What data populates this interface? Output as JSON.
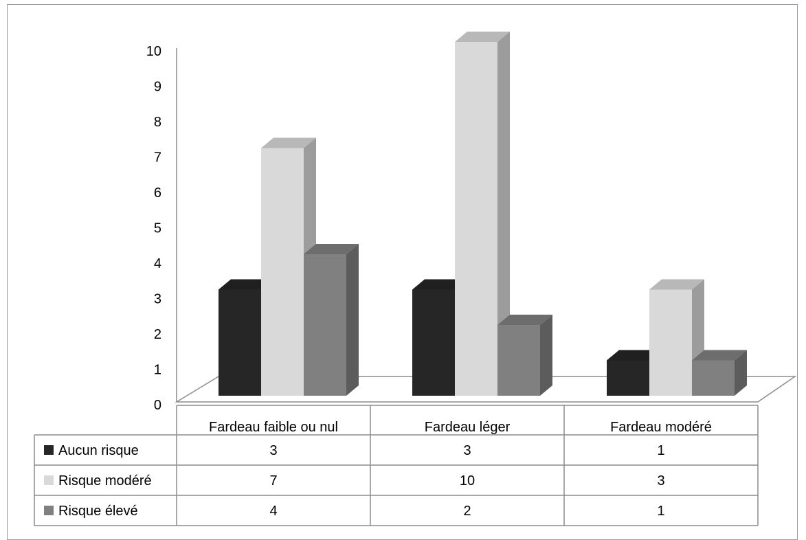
{
  "chart_data": {
    "type": "bar",
    "title": "",
    "xlabel": "",
    "ylabel": "",
    "categories": [
      "Fardeau faible ou nul",
      "Fardeau léger",
      "Fardeau modéré"
    ],
    "series": [
      {
        "name": "Aucun risque",
        "values": [
          3,
          3,
          1
        ],
        "color": "#262626"
      },
      {
        "name": "Risque modéré",
        "values": [
          7,
          10,
          3
        ],
        "color": "#d9d9d9"
      },
      {
        "name": "Risque élevé",
        "values": [
          4,
          2,
          1
        ],
        "color": "#808080"
      }
    ],
    "ylim": [
      0,
      10
    ],
    "yticks": [
      "0",
      "1",
      "2",
      "3",
      "4",
      "5",
      "6",
      "7",
      "8",
      "9",
      "10"
    ],
    "grid": false,
    "style": "3d-clustered-column",
    "legend": "data-table-left"
  }
}
